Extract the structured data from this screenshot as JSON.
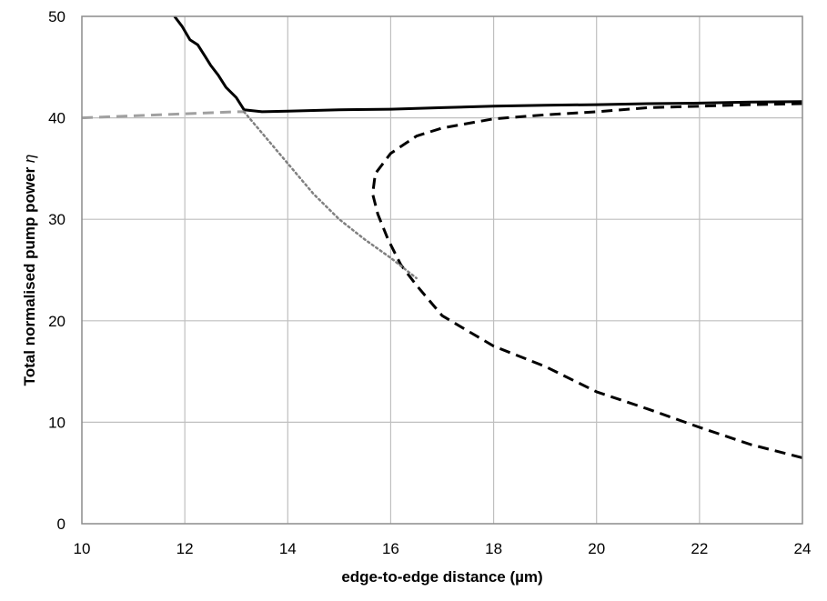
{
  "chart_data": {
    "type": "line",
    "title": "",
    "xlabel": "edge-to-edge distance (µm)",
    "ylabel_text": "Total normalised pump power ",
    "ylabel_symbol": "η",
    "xlim": [
      10,
      24
    ],
    "ylim": [
      0,
      50
    ],
    "x_ticks": [
      10,
      12,
      14,
      16,
      18,
      20,
      22,
      24
    ],
    "y_ticks": [
      0,
      10,
      20,
      30,
      40,
      50
    ],
    "grid": true,
    "legend": "none",
    "series": [
      {
        "style": "solid",
        "color": "#000000",
        "points": [
          [
            11.8,
            50
          ],
          [
            11.95,
            49
          ],
          [
            12.1,
            47.7
          ],
          [
            12.25,
            47.2
          ],
          [
            12.4,
            46
          ],
          [
            12.5,
            45.2
          ],
          [
            12.65,
            44.2
          ],
          [
            12.8,
            43
          ],
          [
            13.0,
            42
          ],
          [
            13.15,
            40.8
          ],
          [
            13.5,
            40.6
          ],
          [
            14,
            40.65
          ],
          [
            15,
            40.8
          ],
          [
            16,
            40.85
          ],
          [
            17,
            41.0
          ],
          [
            18,
            41.15
          ],
          [
            19,
            41.25
          ],
          [
            20,
            41.3
          ],
          [
            21,
            41.4
          ],
          [
            22,
            41.45
          ],
          [
            23,
            41.55
          ],
          [
            24,
            41.6
          ]
        ]
      },
      {
        "style": "dashed",
        "color": "#000000",
        "points": [
          [
            24,
            41.4
          ],
          [
            23,
            41.3
          ],
          [
            22,
            41.15
          ],
          [
            21,
            41.0
          ],
          [
            20,
            40.6
          ],
          [
            19,
            40.3
          ],
          [
            18,
            39.9
          ],
          [
            17,
            39.0
          ],
          [
            16.5,
            38.2
          ],
          [
            16,
            36.5
          ],
          [
            15.7,
            34.5
          ],
          [
            15.65,
            32.5
          ],
          [
            15.75,
            30.5
          ],
          [
            15.95,
            28
          ],
          [
            16.2,
            25.5
          ],
          [
            16.5,
            23.5
          ],
          [
            17,
            20.5
          ],
          [
            17.5,
            19.0
          ],
          [
            18,
            17.5
          ],
          [
            19,
            15.5
          ],
          [
            20,
            13.0
          ],
          [
            21,
            11.3
          ],
          [
            22,
            9.5
          ],
          [
            23,
            7.8
          ],
          [
            24,
            6.5
          ]
        ]
      },
      {
        "style": "dashed",
        "color": "#a0a0a0",
        "points": [
          [
            10,
            40
          ],
          [
            11,
            40.2
          ],
          [
            12,
            40.4
          ],
          [
            13,
            40.6
          ],
          [
            13.15,
            40.6
          ]
        ]
      },
      {
        "style": "dotted",
        "color": "#808080",
        "points": [
          [
            13.15,
            40.6
          ],
          [
            13.5,
            38.5
          ],
          [
            14,
            35.5
          ],
          [
            14.5,
            32.5
          ],
          [
            15,
            30
          ],
          [
            15.5,
            28
          ],
          [
            16,
            26.2
          ],
          [
            16.5,
            24.2
          ]
        ]
      }
    ]
  }
}
